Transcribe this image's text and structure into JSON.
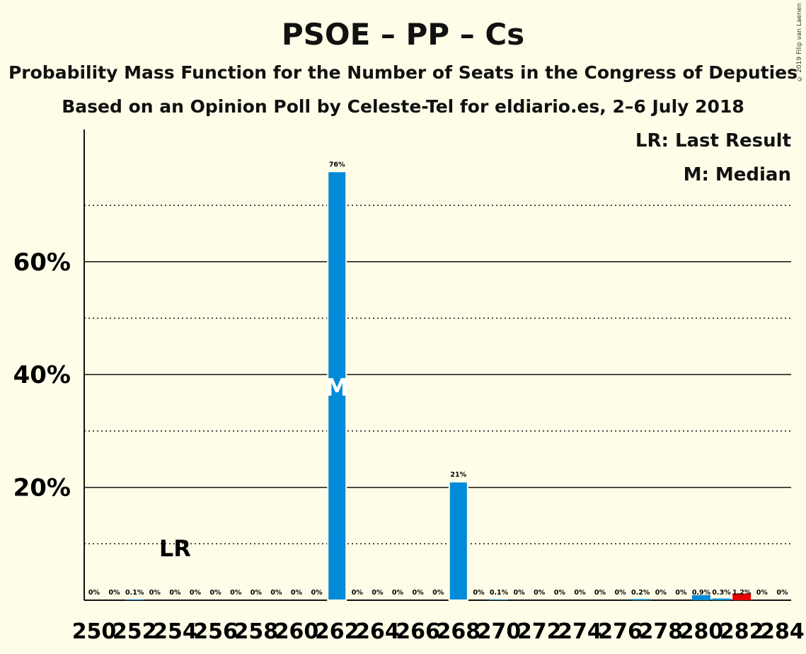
{
  "chart_data": {
    "type": "bar",
    "title": "PSOE – PP – Cs",
    "subtitle1": "Probability Mass Function for the Number of Seats in the Congress of Deputies",
    "subtitle2": "Based on an Opinion Poll by Celeste-Tel for eldiario.es, 2–6 July 2018",
    "copyright": "© 2019 Filip van Laenen",
    "legend": [
      "LR: Last Result",
      "M: Median"
    ],
    "legend_position": "top-right",
    "x": [
      250,
      251,
      252,
      253,
      254,
      255,
      256,
      257,
      258,
      259,
      260,
      261,
      262,
      263,
      264,
      265,
      266,
      267,
      268,
      269,
      270,
      271,
      272,
      273,
      274,
      275,
      276,
      277,
      278,
      279,
      280,
      281,
      282,
      283,
      284
    ],
    "values": [
      0,
      0,
      0.1,
      0,
      0,
      0,
      0,
      0,
      0,
      0,
      0,
      0,
      76,
      0,
      0,
      0,
      0,
      0,
      21,
      0,
      0.1,
      0,
      0,
      0,
      0,
      0,
      0,
      0.2,
      0,
      0,
      0.9,
      0.3,
      1.2,
      0,
      0
    ],
    "value_labels": [
      "0%",
      "0%",
      "0.1%",
      "0%",
      "0%",
      "0%",
      "0%",
      "0%",
      "0%",
      "0%",
      "0%",
      "0%",
      "76%",
      "0%",
      "0%",
      "0%",
      "0%",
      "0%",
      "21%",
      "0%",
      "0.1%",
      "0%",
      "0%",
      "0%",
      "0%",
      "0%",
      "0%",
      "0.2%",
      "0%",
      "0%",
      "0.9%",
      "0.3%",
      "1.2%",
      "0%",
      "0%"
    ],
    "x_tick_labels": [
      "250",
      "252",
      "254",
      "256",
      "258",
      "260",
      "262",
      "264",
      "266",
      "268",
      "270",
      "272",
      "274",
      "276",
      "278",
      "280",
      "282",
      "284"
    ],
    "y_ticks": [
      20,
      40,
      60
    ],
    "y_tick_labels": [
      "20%",
      "40%",
      "60%"
    ],
    "ylim": [
      0,
      83
    ],
    "median": 262,
    "median_label": "M",
    "last_result": 254,
    "last_result_label": "LR",
    "highlight_seat": 282,
    "colors": {
      "bar": "#008ad8",
      "highlight": "#e60000",
      "background": "#fffde8"
    }
  }
}
